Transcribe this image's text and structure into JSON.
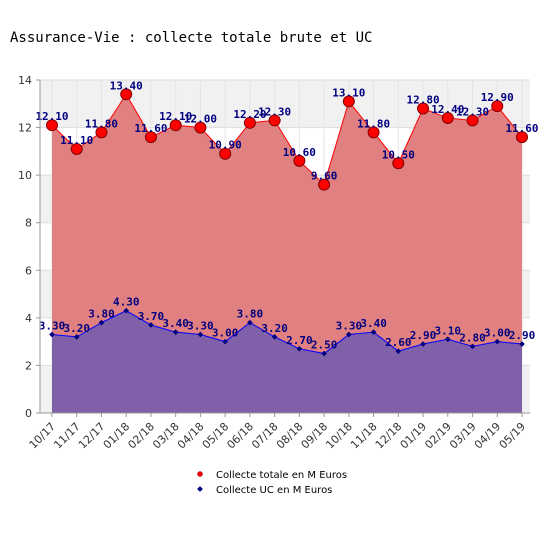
{
  "chart_data": {
    "type": "area",
    "title": "Assurance-Vie : collecte totale brute et UC",
    "categories": [
      "10/17",
      "11/17",
      "12/17",
      "01/18",
      "02/18",
      "03/18",
      "04/18",
      "05/18",
      "06/18",
      "07/18",
      "08/18",
      "09/18",
      "10/18",
      "11/18",
      "12/18",
      "01/19",
      "02/19",
      "03/19",
      "04/19",
      "05/19"
    ],
    "series": [
      {
        "name": "Collecte totale en M Euros",
        "values": [
          12.1,
          11.1,
          11.8,
          13.4,
          11.6,
          12.1,
          12.0,
          10.9,
          12.2,
          12.3,
          10.6,
          9.6,
          13.1,
          11.8,
          10.5,
          12.8,
          12.4,
          12.3,
          12.9,
          11.6
        ],
        "labels": [
          "12.10",
          "11.10",
          "11.80",
          "13.40",
          "11.60",
          "12.10",
          "12.00",
          "10.90",
          "12.20",
          "12.30",
          "10.60",
          "9.60",
          "13.10",
          "11.80",
          "10.50",
          "12.80",
          "12.40",
          "12.30",
          "12.90",
          "11.60"
        ],
        "fill": "#e08080",
        "line": "#ff0000",
        "marker": "#ff0000"
      },
      {
        "name": "Collecte UC en M Euros",
        "values": [
          3.3,
          3.2,
          3.8,
          4.3,
          3.7,
          3.4,
          3.3,
          3.0,
          3.8,
          3.2,
          2.7,
          2.5,
          3.3,
          3.4,
          2.6,
          2.9,
          3.1,
          2.8,
          3.0,
          2.9
        ],
        "labels": [
          "3.30",
          "3.20",
          "3.80",
          "4.30",
          "3.70",
          "3.40",
          "3.30",
          "3.00",
          "3.80",
          "3.20",
          "2.70",
          "2.50",
          "3.30",
          "3.40",
          "2.60",
          "2.90",
          "3.10",
          "2.80",
          "3.00",
          "2.90"
        ],
        "fill": "#8060a8",
        "line": "#0000ff",
        "marker": "#000080"
      }
    ],
    "yticks": [
      "0",
      "2",
      "4",
      "6",
      "8",
      "10",
      "12",
      "14"
    ],
    "ylim": [
      0,
      14
    ],
    "grid": true,
    "legend": "bottom-center"
  }
}
